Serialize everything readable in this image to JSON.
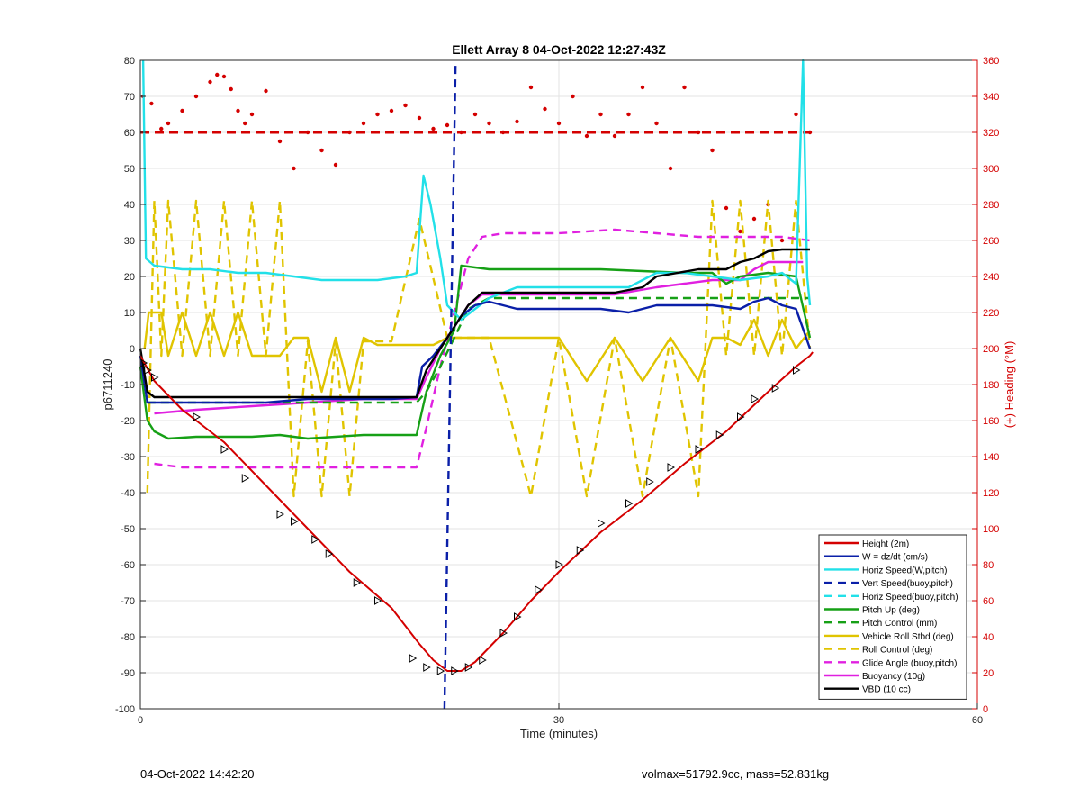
{
  "chart_data": {
    "type": "line",
    "title": "Ellett Array 8 04-Oct-2022 12:27:43Z",
    "xlabel": "Time (minutes)",
    "ylabel_left": "p6711240",
    "ylabel_right": "(+) Heading (°M)",
    "xlim": [
      0,
      60
    ],
    "ylim_left": [
      -100,
      80
    ],
    "ylim_right": [
      0,
      360
    ],
    "xticks": [
      0,
      30,
      60
    ],
    "yticks_left": [
      -100,
      -90,
      -80,
      -70,
      -60,
      -50,
      -40,
      -30,
      -20,
      -10,
      0,
      10,
      20,
      30,
      40,
      50,
      60,
      70,
      80
    ],
    "yticks_right": [
      0,
      20,
      40,
      60,
      80,
      100,
      120,
      140,
      160,
      180,
      200,
      220,
      240,
      260,
      280,
      300,
      320,
      340,
      360
    ],
    "grid": true,
    "legend_position": "bottom-right",
    "series": [
      {
        "name": "Height (2m)",
        "color": "#d40000",
        "style": "solid",
        "x": [
          0,
          1,
          3,
          6,
          9,
          12,
          15,
          18,
          20,
          21,
          22,
          23,
          24,
          26,
          28,
          30,
          33,
          36,
          39,
          42,
          45,
          47,
          48,
          48.2
        ],
        "y": [
          -2,
          -9,
          -17,
          -26,
          -38,
          -50,
          -62,
          -72,
          -82,
          -86.5,
          -89.5,
          -89.5,
          -87,
          -79,
          -70,
          -62,
          -51,
          -42,
          -32,
          -23,
          -12,
          -5,
          -2,
          -1
        ]
      },
      {
        "name": "W = dz/dt (cm/s)",
        "color": "#0a1fa8",
        "style": "solid",
        "x": [
          0,
          0.5,
          1,
          3,
          6,
          9,
          12,
          15,
          18,
          19.8,
          20.2,
          21,
          22,
          23,
          24,
          25,
          27,
          30,
          33,
          35,
          37,
          39,
          41,
          43,
          44,
          45,
          46,
          47,
          48
        ],
        "y": [
          -2,
          -15,
          -15,
          -15,
          -15,
          -15,
          -14,
          -14,
          -14,
          -13.5,
          -5,
          -2,
          3,
          9,
          12,
          13,
          11,
          11,
          11,
          10,
          12,
          12,
          12,
          11,
          13,
          14,
          12,
          11,
          0
        ]
      },
      {
        "name": "Horiz Speed(W,pitch)",
        "color": "#22e0e8",
        "style": "solid",
        "x": [
          0.2,
          0.4,
          1,
          3,
          5,
          7,
          9,
          11,
          13,
          15,
          17,
          19,
          19.8,
          20.3,
          20.8,
          21.5,
          22,
          23,
          25,
          27,
          30,
          33,
          35,
          37,
          39,
          41,
          43,
          45,
          46,
          47,
          47.5,
          47.8,
          48
        ],
        "y": [
          80,
          25,
          23,
          22,
          22,
          21,
          21,
          20,
          19,
          19,
          19,
          20,
          21,
          48,
          40,
          25,
          12,
          8,
          14,
          17,
          17,
          17,
          17,
          21,
          21,
          20,
          19,
          20,
          21,
          18,
          80,
          20,
          12
        ]
      },
      {
        "name": "Vert Speed(buoy,pitch)",
        "color": "#0a1fa8",
        "style": "dashed",
        "x": [
          21.8,
          22.2,
          22.6
        ],
        "y": [
          -100,
          -10,
          80
        ]
      },
      {
        "name": "Horiz Speed(buoy,pitch)",
        "color": "#22e0e8",
        "style": "dashed",
        "x": [],
        "y": []
      },
      {
        "name": "Pitch Up (deg)",
        "color": "#16a016",
        "style": "solid",
        "x": [
          0,
          0.5,
          1,
          2,
          4,
          6,
          8,
          10,
          12,
          14,
          16,
          18,
          19.8,
          20.5,
          21.5,
          22.5,
          23,
          25,
          27,
          30,
          33,
          36,
          39,
          41,
          42,
          43,
          45,
          47,
          48
        ],
        "y": [
          -5,
          -20,
          -23,
          -25,
          -24.5,
          -24.5,
          -24.5,
          -24,
          -25,
          -24.5,
          -24,
          -24,
          -24,
          -12,
          -2,
          5,
          23,
          22,
          22,
          22,
          22,
          21.5,
          21,
          21,
          18,
          20,
          21,
          20,
          3
        ]
      },
      {
        "name": "Pitch Control (mm)",
        "color": "#16a016",
        "style": "dashed",
        "x": [
          0.5,
          4,
          8,
          12,
          16,
          19.8,
          20.5,
          21.5,
          22.5,
          23.5,
          25,
          30,
          35,
          40,
          45,
          48
        ],
        "y": [
          -15,
          -15,
          -15,
          -15,
          -15,
          -15,
          -12,
          -5,
          3,
          11,
          14,
          14,
          14,
          14,
          14,
          14
        ]
      },
      {
        "name": "Vehicle Roll Stbd (deg)",
        "color": "#e0c400",
        "style": "solid",
        "x": [
          0.3,
          0.6,
          1.5,
          2,
          3,
          4,
          5,
          6,
          7,
          8,
          9,
          10,
          11,
          12,
          13,
          14,
          15,
          16,
          17,
          18,
          19,
          20,
          21,
          22,
          24,
          26,
          28,
          30,
          32,
          34,
          36,
          38,
          40,
          41,
          42,
          43,
          44,
          45,
          46,
          47,
          48
        ],
        "y": [
          0,
          10,
          10,
          -2,
          10,
          -2,
          10,
          -2,
          10,
          -2,
          -2,
          -2,
          3,
          3,
          -12,
          3,
          -12,
          3,
          1,
          1,
          1,
          1,
          1,
          3,
          3,
          3,
          3,
          3,
          -9,
          3,
          -9,
          3,
          -9,
          3,
          3,
          1,
          8,
          -2,
          8,
          0,
          5
        ]
      },
      {
        "name": "Roll Control (deg)",
        "color": "#e0c400",
        "style": "dashed",
        "x": [
          0.5,
          1,
          1.5,
          2,
          3,
          4,
          5,
          6,
          7,
          8,
          9,
          10,
          11,
          12,
          13,
          14,
          15,
          16,
          18,
          20,
          22,
          25,
          28,
          30,
          32,
          34,
          36,
          38,
          40,
          41,
          42,
          43,
          44,
          45,
          46,
          47,
          48
        ],
        "y": [
          -40,
          41,
          -2,
          41,
          -2,
          41,
          -2,
          41,
          -2,
          41,
          -2,
          41,
          -41,
          2,
          -41,
          2,
          -41,
          2,
          2,
          36,
          3,
          3,
          -41,
          3,
          -41,
          3,
          -41,
          3,
          -41,
          41,
          -2,
          41,
          -2,
          41,
          -2,
          41,
          0
        ]
      },
      {
        "name": "Glide Angle (buoy,pitch)",
        "color": "#e020e0",
        "style": "dashed",
        "x": [
          1,
          3,
          6,
          9,
          12,
          15,
          18,
          19.8,
          20.5,
          21.5,
          22.5,
          23.5,
          24.5,
          26,
          30,
          34,
          37,
          40,
          43,
          46,
          48
        ],
        "y": [
          -32,
          -33,
          -33,
          -33,
          -33,
          -33,
          -33,
          -33,
          -22,
          -5,
          10,
          25,
          31,
          32,
          32,
          33,
          32,
          31,
          31,
          31,
          30
        ]
      },
      {
        "name": "Buoyancy (10g)",
        "color": "#e020e0",
        "style": "solid",
        "x": [
          1,
          4,
          8,
          12,
          16,
          19.8,
          20.5,
          21.5,
          22.5,
          23.5,
          24.5,
          26,
          30,
          34,
          37,
          39,
          41,
          42,
          43,
          44,
          45,
          46,
          47.5
        ],
        "y": [
          -18,
          -17,
          -16,
          -15,
          -14,
          -14,
          -8,
          0,
          6,
          12,
          15,
          15,
          15,
          15,
          17,
          18,
          19,
          19,
          19,
          22,
          24,
          24,
          24
        ]
      },
      {
        "name": "VBD (10 cc)",
        "color": "#000000",
        "style": "solid",
        "x": [
          0,
          0.5,
          1,
          4,
          8,
          12,
          16,
          19.8,
          20.5,
          21.5,
          22.5,
          23.5,
          24.5,
          26,
          30,
          34,
          36,
          37,
          40,
          42,
          43,
          44,
          45,
          46,
          48
        ],
        "y": [
          0,
          -12,
          -13.5,
          -13.5,
          -13.5,
          -13.5,
          -13.5,
          -13.5,
          -6,
          0,
          6,
          12,
          15.5,
          15.5,
          15.5,
          15.5,
          17,
          20,
          22,
          22,
          24,
          25,
          27,
          27.5,
          27.5
        ]
      }
    ],
    "heading": {
      "name": "Heading",
      "color": "#d40000",
      "axis": "right",
      "reference": 320,
      "x": [
        0.2,
        0.8,
        1.5,
        2,
        3,
        4,
        5,
        5.5,
        6,
        6.5,
        7,
        7.5,
        8,
        9,
        10,
        11,
        12,
        13,
        14,
        15,
        16,
        17,
        18,
        19,
        20,
        21,
        22,
        23,
        24,
        25,
        26,
        27,
        28,
        29,
        30,
        31,
        32,
        33,
        34,
        35,
        36,
        37,
        38,
        39,
        40,
        41,
        42,
        43,
        44,
        45,
        46,
        47,
        47.5,
        48
      ],
      "y": [
        340,
        336,
        322,
        325,
        332,
        340,
        348,
        352,
        351,
        344,
        332,
        325,
        330,
        343,
        315,
        300,
        320,
        310,
        302,
        320,
        325,
        330,
        332,
        335,
        328,
        322,
        324,
        320,
        330,
        325,
        320,
        326,
        345,
        333,
        325,
        340,
        318,
        330,
        318,
        330,
        345,
        325,
        300,
        345,
        320,
        310,
        278,
        265,
        272,
        280,
        260,
        330,
        340,
        320
      ]
    },
    "markers": {
      "name": "Height markers",
      "color": "#000000",
      "x": [
        0.2,
        0.5,
        1,
        4,
        6,
        7.5,
        10,
        11,
        12.5,
        13.5,
        15.5,
        17,
        19.5,
        20.5,
        21.5,
        22.5,
        23.5,
        24.5,
        26,
        27,
        28.5,
        30,
        31.5,
        33,
        35,
        36.5,
        38,
        40,
        41.5,
        43,
        44,
        45.5,
        47
      ],
      "y": [
        -4,
        -6,
        -8,
        -19,
        -28,
        -36,
        -46,
        -48,
        -53,
        -57,
        -65,
        -70,
        -86,
        -88.5,
        -89.5,
        -89.5,
        -88.5,
        -86.5,
        -79,
        -74.5,
        -67,
        -60,
        -56,
        -48.5,
        -43,
        -37,
        -33,
        -28,
        -24,
        -19,
        -14,
        -11,
        -6
      ]
    },
    "legend": [
      "Height (2m)",
      "W = dz/dt (cm/s)",
      "Horiz Speed(W,pitch)",
      "Vert Speed(buoy,pitch)",
      "Horiz Speed(buoy,pitch)",
      "Pitch Up (deg)",
      "Pitch Control (mm)",
      "Vehicle Roll Stbd (deg)",
      "Roll Control (deg)",
      "Glide Angle (buoy,pitch)",
      "Buoyancy (10g)",
      "VBD (10 cc)"
    ]
  },
  "footer": {
    "left": "04-Oct-2022 14:42:20",
    "right": "volmax=51792.9cc, mass=52.831kg"
  }
}
